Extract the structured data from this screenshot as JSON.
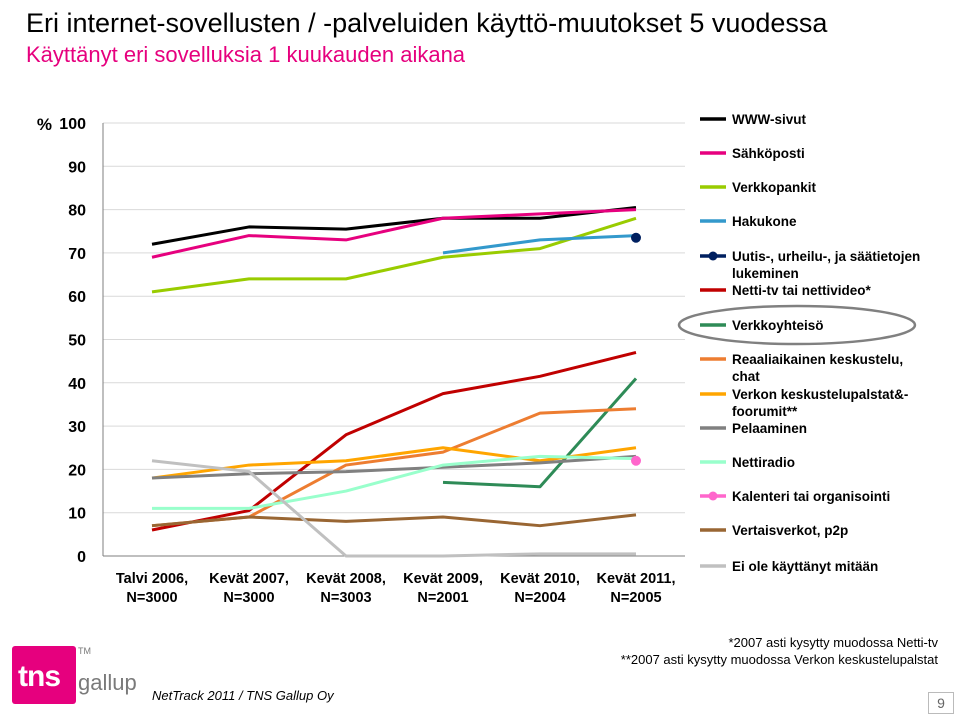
{
  "header": {
    "title": "Eri internet-sovellusten / -palveluiden käyttö-muutokset 5 vuodessa",
    "subtitle": "Käyttänyt eri sovelluksia 1 kuukauden aikana"
  },
  "chart_data": {
    "type": "line",
    "ylabel": "%",
    "ylim": [
      0,
      100
    ],
    "yticks": [
      0,
      10,
      20,
      30,
      40,
      50,
      60,
      70,
      80,
      90,
      100
    ],
    "categories": [
      [
        "Talvi 2006,",
        "N=3000"
      ],
      [
        "Kevät 2007,",
        "N=3000"
      ],
      [
        "Kevät 2008,",
        "N=3003"
      ],
      [
        "Kevät 2009,",
        "N=2001"
      ],
      [
        "Kevät 2010,",
        "N=2004"
      ],
      [
        "Kevät 2011,",
        "N=2005"
      ]
    ],
    "legend_position": "right",
    "series": [
      {
        "name": [
          "WWW-sivut"
        ],
        "color": "#000000",
        "marker": "none",
        "values": [
          72,
          76,
          75.5,
          78,
          78,
          80.5
        ]
      },
      {
        "name": [
          "Sähköposti"
        ],
        "color": "#e6007e",
        "marker": "none",
        "values": [
          69,
          74,
          73,
          78,
          79,
          80
        ]
      },
      {
        "name": [
          "Verkkopankit"
        ],
        "color": "#99cc00",
        "marker": "none",
        "values": [
          61,
          64,
          64,
          69,
          71,
          78
        ]
      },
      {
        "name": [
          "Hakukone"
        ],
        "color": "#3399cc",
        "marker": "none",
        "values": [
          null,
          null,
          null,
          70,
          73,
          74
        ]
      },
      {
        "name": [
          "Uutis-, urheilu-, ja säätietojen",
          "lukeminen"
        ],
        "color": "#002060",
        "marker": "dot",
        "values": [
          null,
          null,
          null,
          null,
          null,
          73.5
        ]
      },
      {
        "name": [
          "Netti-tv tai nettivideo*"
        ],
        "color": "#c00000",
        "marker": "none",
        "values": [
          6,
          10.5,
          28,
          37.5,
          41.5,
          47
        ]
      },
      {
        "name": [
          "Verkkoyhteisö"
        ],
        "color": "#2e8b57",
        "marker": "none",
        "values": [
          null,
          null,
          null,
          17,
          16,
          41
        ]
      },
      {
        "name": [
          "Reaaliaikainen keskustelu,",
          "chat"
        ],
        "color": "#ed7d31",
        "marker": "none",
        "values": [
          7,
          9,
          21,
          24,
          33,
          34
        ]
      },
      {
        "name": [
          "Verkon keskustelupalstat&-",
          "foorumit**"
        ],
        "color": "#ffa500",
        "marker": "none",
        "values": [
          18,
          21,
          22,
          25,
          22,
          25
        ]
      },
      {
        "name": [
          "Pelaaminen"
        ],
        "color": "#808080",
        "marker": "none",
        "values": [
          18,
          19,
          19.5,
          20.5,
          21.5,
          23
        ]
      },
      {
        "name": [
          "Nettiradio"
        ],
        "color": "#99ffcc",
        "marker": "none",
        "values": [
          11,
          11,
          15,
          21,
          23,
          22.5
        ]
      },
      {
        "name": [
          "Kalenteri tai organisointi"
        ],
        "color": "#ff66cc",
        "marker": "dot",
        "values": [
          null,
          null,
          null,
          null,
          null,
          22
        ]
      },
      {
        "name": [
          "Vertaisverkot, p2p"
        ],
        "color": "#996633",
        "marker": "none",
        "values": [
          7,
          9,
          8,
          9,
          7,
          9.5
        ]
      },
      {
        "name": [
          "Ei ole käyttänyt mitään"
        ],
        "color": "#c0c0c0",
        "marker": "none",
        "values": [
          22,
          19.5,
          0,
          0,
          0.5,
          0.5
        ]
      }
    ],
    "highlighted_legend_entry": "Verkkoyhteisö"
  },
  "footnotes": {
    "note1": "*2007 asti kysytty muodossa Netti-tv",
    "note2": "**2007 asti kysytty muodossa Verkon keskustelupalstat"
  },
  "footer": {
    "source": "NetTrack 2011 / TNS Gallup Oy",
    "logo_main": "tns",
    "logo_sub": "gallup",
    "logo_tm": "TM",
    "page_number": "9"
  }
}
